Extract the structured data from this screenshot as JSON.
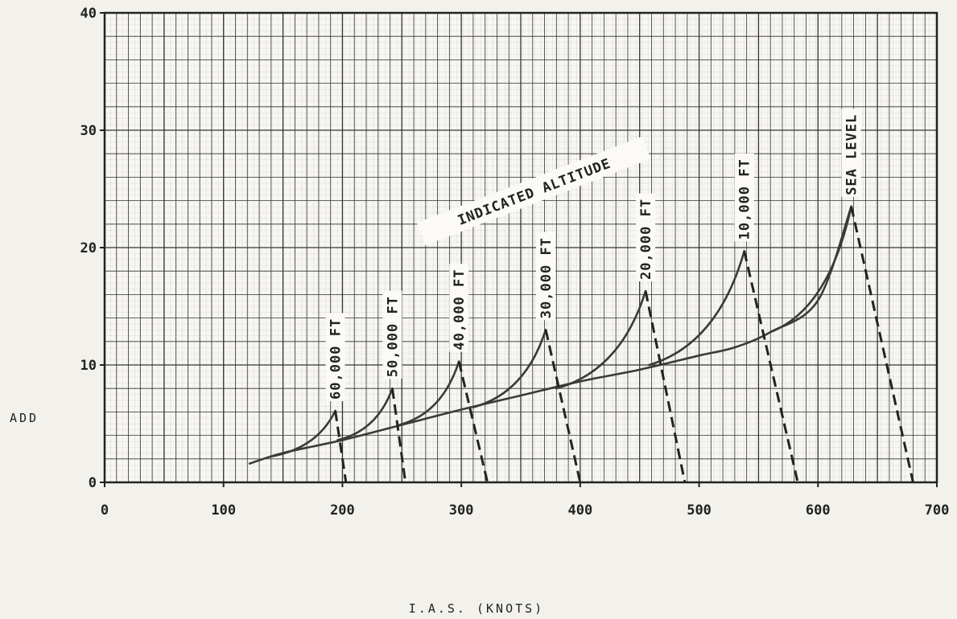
{
  "chart_data": {
    "type": "line",
    "title": "",
    "xlabel": "I.A.S. (KNOTS)",
    "ylabel": "ADD",
    "xlim": [
      0,
      700
    ],
    "ylim": [
      0,
      40
    ],
    "x_ticks": [
      "0",
      "100",
      "200",
      "300",
      "400",
      "500",
      "600",
      "700"
    ],
    "y_ticks": [
      "0",
      "10",
      "20",
      "30",
      "40"
    ],
    "grid": true,
    "annotation": "INDICATED ALTITUDE",
    "base_curve": {
      "name": "",
      "points": [
        [
          122,
          1.6
        ],
        [
          150,
          2.5
        ],
        [
          200,
          3.6
        ],
        [
          250,
          4.9
        ],
        [
          300,
          6.2
        ],
        [
          350,
          7.4
        ],
        [
          400,
          8.6
        ],
        [
          450,
          9.6
        ],
        [
          500,
          10.8
        ],
        [
          530,
          11.5
        ],
        [
          560,
          12.8
        ],
        [
          600,
          15.5
        ],
        [
          628,
          23.5
        ]
      ]
    },
    "series": [
      {
        "name": "60,000 FT",
        "start": [
          140,
          2.2
        ],
        "peak": [
          194,
          6.1
        ],
        "drop_to": [
          203,
          0
        ]
      },
      {
        "name": "50,000 FT",
        "start": [
          196,
          3.6
        ],
        "peak": [
          242,
          8.0
        ],
        "drop_to": [
          253,
          0
        ]
      },
      {
        "name": "40,000 FT",
        "start": [
          248,
          4.9
        ],
        "peak": [
          298,
          10.3
        ],
        "drop_to": [
          322,
          0
        ]
      },
      {
        "name": "30,000 FT",
        "start": [
          310,
          6.4
        ],
        "peak": [
          371,
          13.0
        ],
        "drop_to": [
          400,
          0
        ]
      },
      {
        "name": "20,000 FT",
        "start": [
          380,
          8.0
        ],
        "peak": [
          455,
          16.3
        ],
        "drop_to": [
          488,
          0
        ]
      },
      {
        "name": "10,000 FT",
        "start": [
          458,
          10.0
        ],
        "peak": [
          538,
          19.7
        ],
        "drop_to": [
          583,
          0
        ]
      },
      {
        "name": "SEA LEVEL",
        "start": [
          560,
          12.8
        ],
        "peak": [
          628,
          23.5
        ],
        "drop_to": [
          680,
          0
        ]
      }
    ]
  }
}
